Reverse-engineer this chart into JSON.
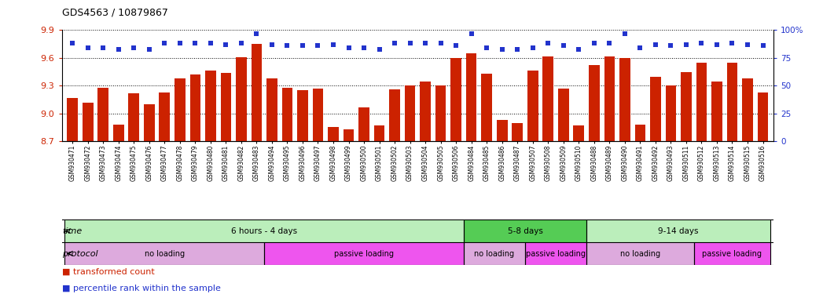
{
  "title": "GDS4563 / 10879867",
  "samples": [
    "GSM930471",
    "GSM930472",
    "GSM930473",
    "GSM930474",
    "GSM930475",
    "GSM930476",
    "GSM930477",
    "GSM930478",
    "GSM930479",
    "GSM930480",
    "GSM930481",
    "GSM930482",
    "GSM930483",
    "GSM930494",
    "GSM930495",
    "GSM930496",
    "GSM930497",
    "GSM930498",
    "GSM930499",
    "GSM930500",
    "GSM930501",
    "GSM930502",
    "GSM930503",
    "GSM930504",
    "GSM930505",
    "GSM930506",
    "GSM930484",
    "GSM930485",
    "GSM930486",
    "GSM930487",
    "GSM930507",
    "GSM930508",
    "GSM930509",
    "GSM930510",
    "GSM930488",
    "GSM930489",
    "GSM930490",
    "GSM930491",
    "GSM930492",
    "GSM930493",
    "GSM930511",
    "GSM930512",
    "GSM930513",
    "GSM930514",
    "GSM930515",
    "GSM930516"
  ],
  "bar_values": [
    9.17,
    9.12,
    9.28,
    8.88,
    9.22,
    9.1,
    9.23,
    9.38,
    9.42,
    9.46,
    9.44,
    9.61,
    9.75,
    9.38,
    9.28,
    9.25,
    9.27,
    8.86,
    8.83,
    9.07,
    8.87,
    9.26,
    9.3,
    9.35,
    9.3,
    9.6,
    9.65,
    9.43,
    8.93,
    8.9,
    9.46,
    9.62,
    9.27,
    8.87,
    9.52,
    9.62,
    9.6,
    8.88,
    9.4,
    9.3,
    9.45,
    9.55,
    9.35,
    9.55,
    9.38,
    9.23
  ],
  "percentile_values": [
    88,
    84,
    84,
    83,
    84,
    83,
    88,
    88,
    88,
    88,
    87,
    88,
    97,
    87,
    86,
    86,
    86,
    87,
    84,
    84,
    83,
    88,
    88,
    88,
    88,
    86,
    97,
    84,
    83,
    83,
    84,
    88,
    86,
    83,
    88,
    88,
    97,
    84,
    87,
    86,
    87,
    88,
    87,
    88,
    87,
    86
  ],
  "ylim_left": [
    8.7,
    9.9
  ],
  "yticks_left": [
    8.7,
    9.0,
    9.3,
    9.6,
    9.9
  ],
  "ylim_right": [
    0,
    100
  ],
  "yticks_right": [
    0,
    25,
    50,
    75,
    100
  ],
  "bar_color": "#cc2200",
  "dot_color": "#2233cc",
  "bg_color": "#f0f0f0",
  "plot_bg": "#ffffff",
  "time_bands": [
    {
      "label": "6 hours - 4 days",
      "start": 0,
      "end": 26,
      "color": "#bbeebb"
    },
    {
      "label": "5-8 days",
      "start": 26,
      "end": 34,
      "color": "#55cc55"
    },
    {
      "label": "9-14 days",
      "start": 34,
      "end": 46,
      "color": "#bbeebb"
    }
  ],
  "protocol_bands": [
    {
      "label": "no loading",
      "start": 0,
      "end": 13,
      "color": "#ddaadd"
    },
    {
      "label": "passive loading",
      "start": 13,
      "end": 26,
      "color": "#ee55ee"
    },
    {
      "label": "no loading",
      "start": 26,
      "end": 30,
      "color": "#ddaadd"
    },
    {
      "label": "passive loading",
      "start": 30,
      "end": 34,
      "color": "#ee55ee"
    },
    {
      "label": "no loading",
      "start": 34,
      "end": 41,
      "color": "#ddaadd"
    },
    {
      "label": "passive loading",
      "start": 41,
      "end": 46,
      "color": "#ee55ee"
    }
  ]
}
